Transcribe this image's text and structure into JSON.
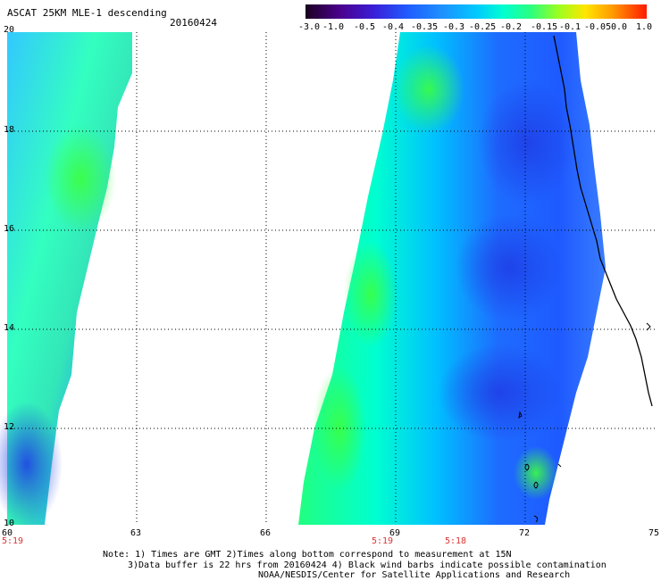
{
  "header": {
    "title": "ASCAT 25KM MLE-1 descending",
    "date": "20160424"
  },
  "colorbar": {
    "ticks": [
      "-3.0",
      "-1.0",
      "-0.5",
      "-0.4",
      "-0.35",
      "-0.3",
      "-0.25",
      "-0.2",
      "-0.15",
      "-0.1",
      "-0.05",
      "0.0",
      "1.0"
    ],
    "colors": [
      "#2a0030",
      "#4b008c",
      "#3a1fd8",
      "#1f5cff",
      "#1e90ff",
      "#00c8ff",
      "#00ffd0",
      "#2aff80",
      "#66ff33",
      "#ccff00",
      "#ffd400",
      "#ff8a00",
      "#ff2a00"
    ]
  },
  "axes": {
    "y_labels": [
      "20",
      "18",
      "16",
      "14",
      "12",
      "10"
    ],
    "x_labels": [
      "60",
      "63",
      "66",
      "69",
      "72",
      "75"
    ],
    "grid": true
  },
  "times": [
    "5:19",
    "5:19",
    "5:18"
  ],
  "notes": {
    "line1": "Note: 1) Times are GMT 2)Times along bottom correspond to measurement at 15N",
    "line2": "3)Data buffer is 22 hrs from 20160424 4) Black wind barbs indicate possible contamination",
    "line3": "NOAA/NESDIS/Center for Satellite Applications and Research"
  }
}
